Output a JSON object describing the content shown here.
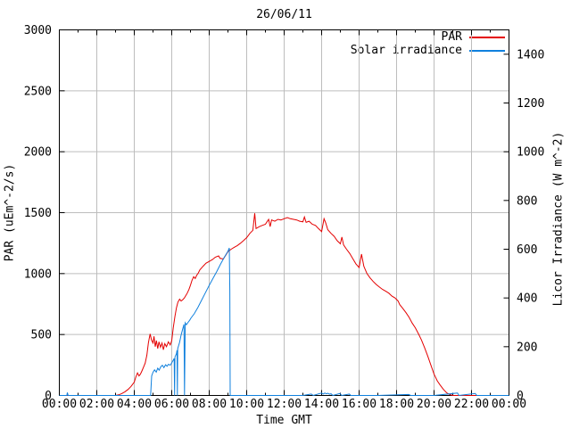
{
  "chart_data": {
    "type": "line",
    "title": "26/06/11",
    "xlabel": "Time GMT",
    "ylabel_left": "PAR (uEm^-2/s)",
    "ylabel_right": "Licor Irradiance (W m^-2)",
    "x_range_hours": [
      0,
      24
    ],
    "x_major_tick_labels": [
      "00:00",
      "02:00",
      "04:00",
      "06:00",
      "08:00",
      "10:00",
      "12:00",
      "14:00",
      "16:00",
      "18:00",
      "20:00",
      "22:00",
      "00:00"
    ],
    "x_minor_tick_every_hours": 1,
    "y_left_range": [
      0,
      3000
    ],
    "y_left_ticks": [
      0,
      500,
      1000,
      1500,
      2000,
      2500,
      3000
    ],
    "y_right_range": [
      0,
      1500
    ],
    "y_right_ticks": [
      0,
      200,
      400,
      600,
      800,
      1000,
      1200,
      1400
    ],
    "grid": true,
    "legend_position": "top-right",
    "series": [
      {
        "name": "PAR",
        "axis": "left",
        "color": "#e40000",
        "units": "uEm^-2/s",
        "points": [
          [
            0,
            0
          ],
          [
            0.5,
            0
          ],
          [
            1,
            0
          ],
          [
            1.5,
            0
          ],
          [
            2,
            0
          ],
          [
            2.5,
            0
          ],
          [
            3,
            0
          ],
          [
            3.17,
            5
          ],
          [
            3.33,
            15
          ],
          [
            3.5,
            30
          ],
          [
            3.67,
            50
          ],
          [
            3.83,
            75
          ],
          [
            4,
            110
          ],
          [
            4.08,
            150
          ],
          [
            4.17,
            185
          ],
          [
            4.25,
            160
          ],
          [
            4.33,
            175
          ],
          [
            4.42,
            205
          ],
          [
            4.5,
            235
          ],
          [
            4.58,
            265
          ],
          [
            4.67,
            330
          ],
          [
            4.75,
            430
          ],
          [
            4.8,
            470
          ],
          [
            4.85,
            505
          ],
          [
            4.92,
            455
          ],
          [
            5,
            430
          ],
          [
            5.05,
            485
          ],
          [
            5.12,
            400
          ],
          [
            5.18,
            450
          ],
          [
            5.25,
            385
          ],
          [
            5.32,
            440
          ],
          [
            5.4,
            395
          ],
          [
            5.48,
            430
          ],
          [
            5.55,
            375
          ],
          [
            5.63,
            425
          ],
          [
            5.72,
            400
          ],
          [
            5.82,
            440
          ],
          [
            5.92,
            415
          ],
          [
            6,
            450
          ],
          [
            6.08,
            555
          ],
          [
            6.17,
            650
          ],
          [
            6.25,
            720
          ],
          [
            6.33,
            765
          ],
          [
            6.42,
            790
          ],
          [
            6.5,
            775
          ],
          [
            6.58,
            785
          ],
          [
            6.67,
            800
          ],
          [
            6.75,
            820
          ],
          [
            6.83,
            840
          ],
          [
            6.92,
            870
          ],
          [
            7,
            905
          ],
          [
            7.08,
            945
          ],
          [
            7.17,
            975
          ],
          [
            7.25,
            960
          ],
          [
            7.33,
            985
          ],
          [
            7.42,
            1005
          ],
          [
            7.5,
            1030
          ],
          [
            7.67,
            1060
          ],
          [
            7.83,
            1085
          ],
          [
            8,
            1100
          ],
          [
            8.17,
            1115
          ],
          [
            8.33,
            1135
          ],
          [
            8.5,
            1145
          ],
          [
            8.58,
            1125
          ],
          [
            8.75,
            1120
          ],
          [
            8.92,
            1160
          ],
          [
            9,
            1180
          ],
          [
            9.17,
            1200
          ],
          [
            9.33,
            1215
          ],
          [
            9.5,
            1230
          ],
          [
            9.67,
            1250
          ],
          [
            9.83,
            1270
          ],
          [
            10,
            1295
          ],
          [
            10.17,
            1330
          ],
          [
            10.33,
            1355
          ],
          [
            10.43,
            1495
          ],
          [
            10.5,
            1370
          ],
          [
            10.67,
            1385
          ],
          [
            10.83,
            1395
          ],
          [
            11,
            1405
          ],
          [
            11.08,
            1425
          ],
          [
            11.17,
            1445
          ],
          [
            11.25,
            1385
          ],
          [
            11.33,
            1440
          ],
          [
            11.5,
            1430
          ],
          [
            11.67,
            1445
          ],
          [
            11.83,
            1440
          ],
          [
            12,
            1450
          ],
          [
            12.17,
            1460
          ],
          [
            12.33,
            1450
          ],
          [
            12.5,
            1445
          ],
          [
            12.67,
            1440
          ],
          [
            12.83,
            1430
          ],
          [
            13,
            1425
          ],
          [
            13.08,
            1465
          ],
          [
            13.17,
            1420
          ],
          [
            13.33,
            1430
          ],
          [
            13.5,
            1405
          ],
          [
            13.67,
            1395
          ],
          [
            13.83,
            1370
          ],
          [
            14,
            1345
          ],
          [
            14.13,
            1450
          ],
          [
            14.22,
            1415
          ],
          [
            14.33,
            1360
          ],
          [
            14.5,
            1330
          ],
          [
            14.67,
            1305
          ],
          [
            14.83,
            1270
          ],
          [
            15,
            1245
          ],
          [
            15.08,
            1300
          ],
          [
            15.17,
            1235
          ],
          [
            15.33,
            1200
          ],
          [
            15.5,
            1165
          ],
          [
            15.67,
            1120
          ],
          [
            15.83,
            1080
          ],
          [
            16,
            1050
          ],
          [
            16.13,
            1160
          ],
          [
            16.25,
            1060
          ],
          [
            16.42,
            1000
          ],
          [
            16.58,
            965
          ],
          [
            16.75,
            935
          ],
          [
            16.92,
            910
          ],
          [
            17.08,
            890
          ],
          [
            17.25,
            870
          ],
          [
            17.42,
            855
          ],
          [
            17.58,
            840
          ],
          [
            17.75,
            815
          ],
          [
            17.92,
            800
          ],
          [
            18.08,
            775
          ],
          [
            18.17,
            745
          ],
          [
            18.33,
            715
          ],
          [
            18.5,
            680
          ],
          [
            18.67,
            640
          ],
          [
            18.83,
            595
          ],
          [
            19,
            555
          ],
          [
            19.17,
            505
          ],
          [
            19.33,
            455
          ],
          [
            19.5,
            390
          ],
          [
            19.67,
            320
          ],
          [
            19.83,
            250
          ],
          [
            20,
            175
          ],
          [
            20.17,
            120
          ],
          [
            20.33,
            85
          ],
          [
            20.5,
            50
          ],
          [
            20.67,
            22
          ],
          [
            20.83,
            8
          ],
          [
            21,
            0
          ],
          [
            21.5,
            0
          ],
          [
            22,
            0
          ],
          [
            22.5,
            0
          ],
          [
            23,
            0
          ],
          [
            23.5,
            0
          ],
          [
            24,
            0
          ]
        ]
      },
      {
        "name": "Solar irradiance",
        "axis": "right",
        "color": "#1080dd",
        "units": "W m^-2",
        "points": [
          [
            0,
            0
          ],
          [
            0.4,
            0
          ],
          [
            0.43,
            12
          ],
          [
            0.47,
            0
          ],
          [
            1,
            0
          ],
          [
            1.5,
            0
          ],
          [
            2,
            0
          ],
          [
            2.5,
            0
          ],
          [
            3,
            0
          ],
          [
            3.5,
            0
          ],
          [
            4,
            0
          ],
          [
            4.5,
            0
          ],
          [
            4.87,
            0
          ],
          [
            4.93,
            80
          ],
          [
            5,
            95
          ],
          [
            5.08,
            105
          ],
          [
            5.17,
            96
          ],
          [
            5.25,
            112
          ],
          [
            5.33,
            104
          ],
          [
            5.42,
            118
          ],
          [
            5.5,
            124
          ],
          [
            5.58,
            114
          ],
          [
            5.67,
            126
          ],
          [
            5.75,
            120
          ],
          [
            5.83,
            128
          ],
          [
            5.92,
            124
          ],
          [
            6,
            134
          ],
          [
            6.08,
            145
          ],
          [
            6.13,
            152
          ],
          [
            6.15,
            0
          ],
          [
            6.17,
            158
          ],
          [
            6.25,
            172
          ],
          [
            6.28,
            186
          ],
          [
            6.3,
            0
          ],
          [
            6.32,
            192
          ],
          [
            6.42,
            218
          ],
          [
            6.5,
            248
          ],
          [
            6.58,
            272
          ],
          [
            6.65,
            292
          ],
          [
            6.68,
            0
          ],
          [
            6.72,
            298
          ],
          [
            6.78,
            290
          ],
          [
            6.87,
            300
          ],
          [
            6.95,
            308
          ],
          [
            7.03,
            318
          ],
          [
            7.2,
            335
          ],
          [
            7.4,
            362
          ],
          [
            7.6,
            392
          ],
          [
            7.8,
            422
          ],
          [
            8,
            452
          ],
          [
            8.2,
            480
          ],
          [
            8.4,
            508
          ],
          [
            8.6,
            538
          ],
          [
            8.8,
            566
          ],
          [
            9,
            592
          ],
          [
            9.07,
            605
          ],
          [
            9.1,
            430
          ],
          [
            9.12,
            0
          ],
          [
            9.5,
            0
          ],
          [
            10,
            0
          ],
          [
            10.5,
            0
          ],
          [
            11,
            0
          ],
          [
            11.5,
            0
          ],
          [
            12,
            0
          ],
          [
            12.5,
            0
          ],
          [
            13,
            0
          ],
          [
            13.45,
            6
          ],
          [
            13.55,
            0
          ],
          [
            13.9,
            8
          ],
          [
            14,
            10
          ],
          [
            14.08,
            6
          ],
          [
            14.17,
            10
          ],
          [
            14.25,
            7
          ],
          [
            14.33,
            9
          ],
          [
            14.42,
            5
          ],
          [
            14.5,
            7
          ],
          [
            14.6,
            0
          ],
          [
            14.97,
            8
          ],
          [
            15.07,
            0
          ],
          [
            15.48,
            6
          ],
          [
            15.55,
            0
          ],
          [
            16,
            0
          ],
          [
            17,
            0
          ],
          [
            18.65,
            4
          ],
          [
            18.75,
            0
          ],
          [
            20,
            0
          ],
          [
            21.25,
            10
          ],
          [
            21.33,
            0
          ],
          [
            22.2,
            8
          ],
          [
            22.28,
            0
          ],
          [
            23,
            0
          ],
          [
            24,
            0
          ]
        ]
      }
    ]
  },
  "colors": {
    "grid": "#bdbdbd",
    "border": "#000000",
    "background": "#ffffff"
  }
}
